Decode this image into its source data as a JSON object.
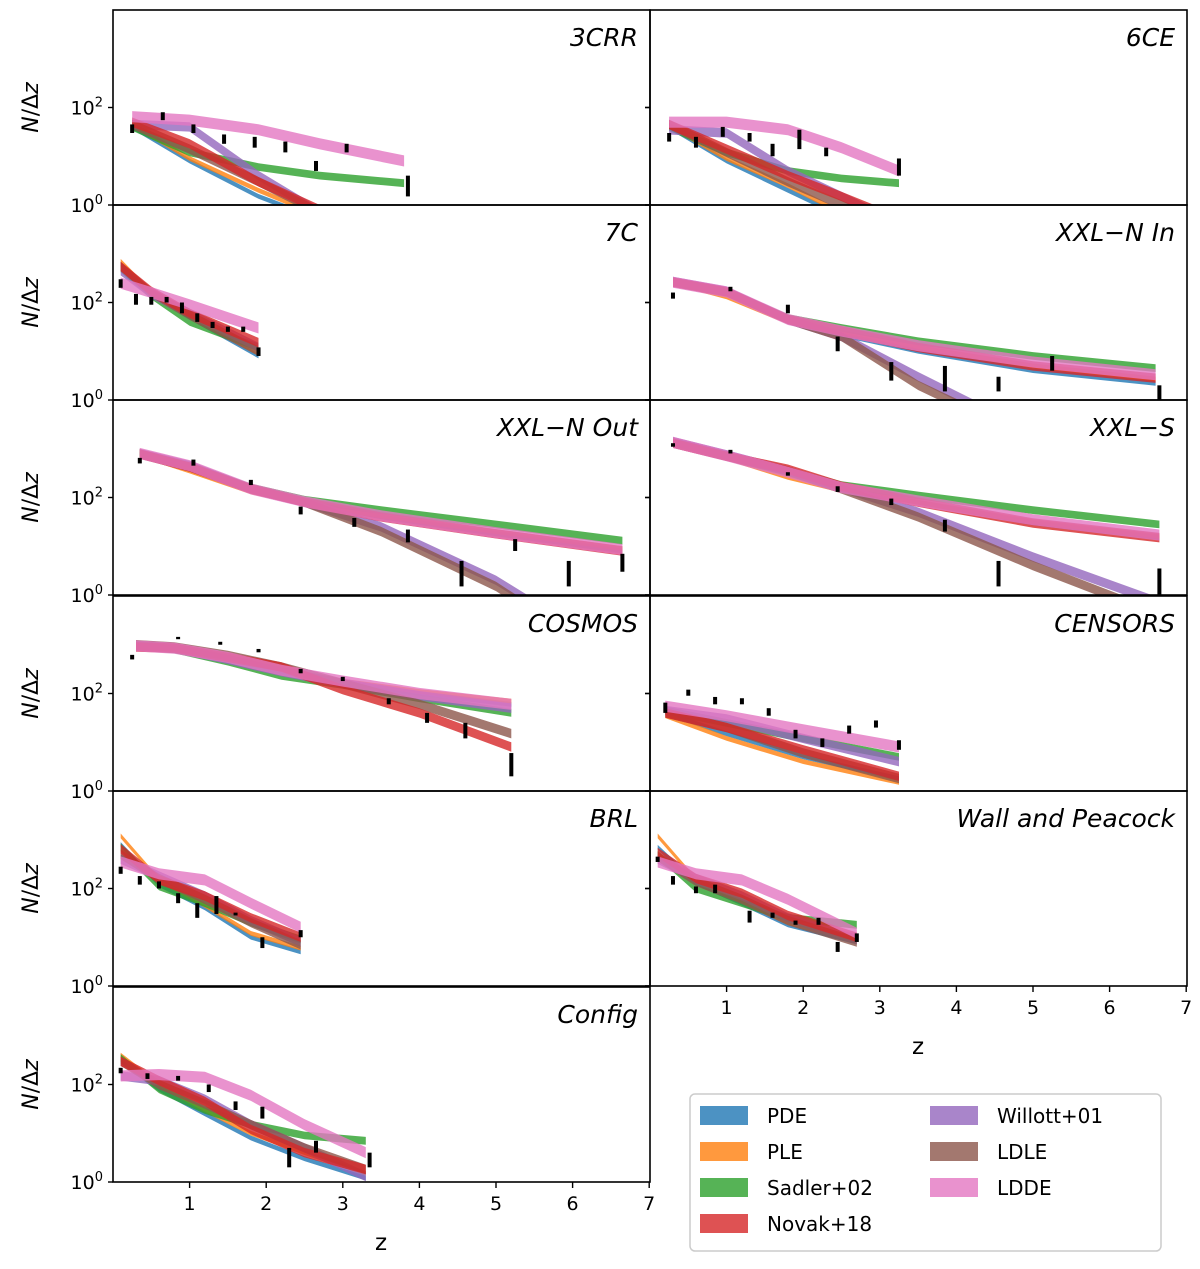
{
  "chart_data": {
    "type": "area",
    "ylabel": "N/Δz",
    "xlabel": "z",
    "yscale": "log",
    "ylim": [
      1,
      10000
    ],
    "xlim": [
      0,
      7
    ],
    "ytick_labels": [
      "10^0",
      "10^2"
    ],
    "xticks": [
      1,
      2,
      3,
      4,
      5,
      6,
      7
    ],
    "legend_location": "lower-right",
    "series": [
      {
        "name": "PDE",
        "color": "#1f77b4"
      },
      {
        "name": "PLE",
        "color": "#ff7f0e"
      },
      {
        "name": "Sadler+02",
        "color": "#2ca02c"
      },
      {
        "name": "Novak+18",
        "color": "#d62728"
      },
      {
        "name": "Willott+01",
        "color": "#9467bd"
      },
      {
        "name": "LDLE",
        "color": "#8c564b"
      },
      {
        "name": "LDDE",
        "color": "#e377c2"
      }
    ],
    "panels": [
      {
        "title": "3CRR",
        "z": [
          0.25,
          1.0,
          1.9,
          2.7,
          3.8
        ],
        "bands": {
          "PDE": [
            40,
            8,
            1.5,
            0.5,
            0.1
          ],
          "PLE": [
            45,
            9,
            2,
            0.6,
            0.12
          ],
          "Sadler+02": [
            40,
            12,
            6,
            4,
            2.8
          ],
          "Novak+18": [
            50,
            18,
            3,
            0.8,
            0.15
          ],
          "Willott+01": [
            45,
            40,
            4,
            0.7,
            0.1
          ],
          "LDLE": [
            45,
            14,
            3,
            0.7,
            0.1
          ],
          "LDDE": [
            65,
            55,
            35,
            18,
            8
          ]
        },
        "data_z": [
          0.25,
          0.65,
          1.05,
          1.45,
          1.85,
          2.25,
          2.65,
          3.05,
          3.85
        ],
        "data_lo": [
          30,
          55,
          30,
          18,
          15,
          12,
          5,
          12,
          1.5
        ],
        "data_hi": [
          45,
          80,
          45,
          28,
          25,
          20,
          8,
          18,
          4
        ]
      },
      {
        "title": "6CE",
        "z": [
          0.25,
          1.0,
          1.8,
          2.5,
          3.25
        ],
        "bands": {
          "PDE": [
            40,
            8,
            2,
            0.6,
            0.2
          ],
          "PLE": [
            42,
            9,
            2.5,
            0.7,
            0.2
          ],
          "Sadler+02": [
            40,
            12,
            5,
            3.5,
            2.8
          ],
          "Novak+18": [
            45,
            14,
            4,
            1.5,
            0.5
          ],
          "Willott+01": [
            35,
            30,
            5,
            1.5,
            0.4
          ],
          "LDLE": [
            45,
            12,
            3,
            1,
            0.3
          ],
          "LDDE": [
            50,
            50,
            35,
            15,
            5
          ]
        },
        "data_z": [
          0.25,
          0.6,
          0.95,
          1.3,
          1.6,
          1.95,
          2.3,
          3.25
        ],
        "data_lo": [
          20,
          15,
          25,
          20,
          10,
          14,
          10,
          4
        ],
        "data_hi": [
          30,
          25,
          40,
          30,
          18,
          35,
          15,
          9
        ]
      },
      {
        "title": "7C",
        "z": [
          0.1,
          0.5,
          1.0,
          1.9
        ],
        "bands": {
          "PDE": [
            600,
            150,
            50,
            8
          ],
          "PLE": [
            700,
            160,
            55,
            9
          ],
          "Sadler+02": [
            500,
            140,
            40,
            12
          ],
          "Novak+18": [
            550,
            170,
            60,
            15
          ],
          "Willott+01": [
            450,
            150,
            60,
            12
          ],
          "LDLE": [
            550,
            160,
            55,
            10
          ],
          "LDDE": [
            250,
            160,
            90,
            30
          ]
        },
        "data_z": [
          0.1,
          0.3,
          0.5,
          0.7,
          0.9,
          1.1,
          1.3,
          1.5,
          1.7,
          1.9
        ],
        "data_lo": [
          200,
          90,
          90,
          100,
          60,
          40,
          30,
          25,
          25,
          8
        ],
        "data_hi": [
          300,
          150,
          130,
          130,
          100,
          60,
          40,
          32,
          32,
          12
        ]
      },
      {
        "title": "XXL−N In",
        "z": [
          0.3,
          1.0,
          1.8,
          2.5,
          3.5,
          5.0,
          6.6
        ],
        "bands": {
          "PDE": [
            260,
            160,
            40,
            22,
            10,
            4,
            2.2
          ],
          "PLE": [
            260,
            130,
            40,
            25,
            12,
            5,
            2.7
          ],
          "Sadler+02": [
            270,
            170,
            48,
            30,
            16,
            8,
            4.5
          ],
          "Novak+18": [
            260,
            165,
            45,
            26,
            12,
            5,
            2.8
          ],
          "Willott+01": [
            270,
            170,
            45,
            20,
            3,
            0.2,
            0.02
          ],
          "LDLE": [
            260,
            165,
            45,
            20,
            2,
            0.15,
            0.01
          ],
          "LDDE": [
            260,
            165,
            45,
            26,
            13,
            6,
            3.3
          ]
        },
        "data_z": [
          0.3,
          1.05,
          1.8,
          2.45,
          3.15,
          3.85,
          4.55,
          5.25,
          6.65
        ],
        "data_lo": [
          120,
          170,
          60,
          10,
          2.5,
          1.5,
          1.5,
          4,
          0.7
        ],
        "data_hi": [
          160,
          210,
          90,
          20,
          6,
          5,
          3,
          8,
          2
        ]
      },
      {
        "title": "XXL−N Out",
        "z": [
          0.35,
          1.0,
          1.8,
          2.5,
          3.5,
          5.0,
          6.65
        ],
        "bands": {
          "PDE": [
            750,
            400,
            150,
            80,
            40,
            18,
            8
          ],
          "PLE": [
            750,
            350,
            130,
            75,
            42,
            20,
            9
          ],
          "Sadler+02": [
            800,
            450,
            160,
            90,
            55,
            28,
            13
          ],
          "Novak+18": [
            780,
            420,
            150,
            80,
            40,
            18,
            8
          ],
          "Willott+01": [
            800,
            450,
            150,
            80,
            25,
            2,
            0.05
          ],
          "LDLE": [
            780,
            420,
            150,
            80,
            20,
            1.5,
            0.03
          ],
          "LDDE": [
            800,
            450,
            150,
            82,
            42,
            19,
            8.5
          ]
        },
        "data_z": [
          0.35,
          1.05,
          1.8,
          2.45,
          3.15,
          3.85,
          4.55,
          5.25,
          5.95,
          6.65
        ],
        "data_lo": [
          500,
          450,
          180,
          45,
          25,
          12,
          1.5,
          8,
          1.5,
          3
        ],
        "data_hi": [
          650,
          600,
          230,
          65,
          38,
          22,
          5,
          14,
          5,
          7
        ]
      },
      {
        "title": "XXL−S",
        "z": [
          0.3,
          1.0,
          1.8,
          2.5,
          3.5,
          5.0,
          6.65
        ],
        "bands": {
          "PDE": [
            1300,
            700,
            300,
            150,
            80,
            30,
            15
          ],
          "PLE": [
            1300,
            650,
            260,
            140,
            80,
            32,
            16
          ],
          "Sadler+02": [
            1400,
            750,
            350,
            180,
            110,
            55,
            28
          ],
          "Novak+18": [
            1300,
            700,
            380,
            170,
            80,
            30,
            15
          ],
          "Willott+01": [
            1400,
            750,
            350,
            160,
            50,
            6,
            0.7
          ],
          "LDLE": [
            1300,
            700,
            350,
            150,
            40,
            4,
            0.4
          ],
          "LDDE": [
            1350,
            720,
            330,
            160,
            85,
            35,
            17
          ]
        },
        "data_z": [
          0.3,
          1.05,
          1.8,
          2.45,
          3.15,
          3.85,
          4.55,
          6.65
        ],
        "data_lo": [
          1100,
          800,
          280,
          130,
          70,
          20,
          1.5,
          0.5
        ],
        "data_hi": [
          1300,
          950,
          330,
          170,
          95,
          35,
          5,
          3.5
        ]
      },
      {
        "title": "COSMOS",
        "z": [
          0.3,
          0.8,
          1.5,
          2.2,
          3.0,
          4.0,
          5.2
        ],
        "bands": {
          "PDE": [
            1000,
            850,
            500,
            280,
            170,
            100,
            60
          ],
          "PLE": [
            1000,
            850,
            550,
            300,
            180,
            110,
            70
          ],
          "Sadler+02": [
            900,
            800,
            450,
            230,
            150,
            80,
            40
          ],
          "Novak+18": [
            900,
            850,
            550,
            350,
            120,
            40,
            8
          ],
          "Willott+01": [
            950,
            850,
            500,
            280,
            160,
            90,
            50
          ],
          "LDLE": [
            1000,
            900,
            600,
            350,
            160,
            60,
            15
          ],
          "LDDE": [
            950,
            850,
            550,
            300,
            180,
            100,
            60
          ]
        },
        "data_z": [
          0.25,
          0.85,
          1.4,
          1.9,
          2.45,
          3.0,
          3.6,
          4.1,
          4.6,
          5.2
        ],
        "data_lo": [
          500,
          1300,
          1000,
          700,
          260,
          180,
          60,
          25,
          12,
          2
        ],
        "data_hi": [
          620,
          1450,
          1150,
          820,
          320,
          220,
          80,
          40,
          25,
          6
        ]
      },
      {
        "title": "CENSORS",
        "z": [
          0.2,
          1.0,
          2.0,
          3.25
        ],
        "bands": {
          "PDE": [
            40,
            15,
            5,
            1.8
          ],
          "PLE": [
            35,
            12,
            4,
            1.5
          ],
          "Sadler+02": [
            45,
            25,
            12,
            5
          ],
          "Novak+18": [
            40,
            20,
            7,
            2
          ],
          "Willott+01": [
            45,
            30,
            12,
            4
          ],
          "LDLE": [
            40,
            20,
            6,
            1.8
          ],
          "LDDE": [
            55,
            35,
            18,
            8
          ]
        },
        "data_z": [
          0.2,
          0.5,
          0.85,
          1.2,
          1.55,
          1.9,
          2.25,
          2.6,
          2.95,
          3.25
        ],
        "data_lo": [
          40,
          90,
          60,
          60,
          35,
          12,
          8,
          15,
          20,
          7
        ],
        "data_hi": [
          65,
          120,
          85,
          80,
          50,
          18,
          12,
          22,
          28,
          11
        ]
      },
      {
        "title": "BRL",
        "z": [
          0.1,
          0.6,
          1.2,
          1.8,
          2.45
        ],
        "bands": {
          "PDE": [
            800,
            120,
            40,
            10,
            5
          ],
          "PLE": [
            1200,
            150,
            45,
            12,
            6
          ],
          "Sadler+02": [
            700,
            110,
            50,
            20,
            9
          ],
          "Novak+18": [
            650,
            150,
            70,
            25,
            10
          ],
          "Willott+01": [
            400,
            180,
            70,
            22,
            8
          ],
          "LDLE": [
            500,
            160,
            60,
            20,
            7
          ],
          "LDDE": [
            350,
            200,
            150,
            50,
            16
          ]
        },
        "data_z": [
          0.1,
          0.35,
          0.6,
          0.85,
          1.1,
          1.35,
          1.6,
          1.95,
          2.45
        ],
        "data_lo": [
          200,
          120,
          100,
          50,
          25,
          30,
          28,
          6,
          10
        ],
        "data_hi": [
          280,
          180,
          140,
          80,
          50,
          70,
          32,
          10,
          14
        ]
      },
      {
        "title": "Wall and Peacock",
        "z": [
          0.1,
          0.6,
          1.2,
          1.8,
          2.7
        ],
        "bands": {
          "PDE": [
            700,
            130,
            50,
            18,
            8
          ],
          "PLE": [
            1200,
            150,
            55,
            20,
            9
          ],
          "Sadler+02": [
            500,
            100,
            50,
            25,
            18
          ],
          "Novak+18": [
            550,
            160,
            80,
            28,
            10
          ],
          "Willott+01": [
            400,
            160,
            70,
            25,
            9
          ],
          "LDLE": [
            450,
            140,
            60,
            22,
            8
          ],
          "LDDE": [
            350,
            200,
            150,
            60,
            12
          ]
        },
        "data_z": [
          0.1,
          0.3,
          0.6,
          0.85,
          1.3,
          1.6,
          1.9,
          2.2,
          2.45,
          2.7
        ],
        "data_lo": [
          350,
          120,
          80,
          80,
          20,
          25,
          18,
          18,
          5,
          8
        ],
        "data_hi": [
          450,
          180,
          110,
          120,
          35,
          32,
          22,
          25,
          8,
          12
        ]
      },
      {
        "title": "Config",
        "z": [
          0.1,
          0.6,
          1.2,
          1.8,
          2.5,
          3.3
        ],
        "bands": {
          "PDE": [
            300,
            80,
            25,
            8,
            3,
            1.2
          ],
          "PLE": [
            400,
            100,
            30,
            10,
            4,
            1.5
          ],
          "Sadler+02": [
            350,
            80,
            30,
            15,
            9,
            7
          ],
          "Novak+18": [
            300,
            120,
            45,
            12,
            4,
            1.8
          ],
          "Willott+01": [
            150,
            120,
            50,
            15,
            5,
            1.3
          ],
          "LDLE": [
            300,
            100,
            40,
            15,
            5,
            1.8
          ],
          "LDDE": [
            150,
            160,
            140,
            60,
            15,
            4
          ]
        },
        "data_z": [
          0.1,
          0.45,
          0.85,
          1.25,
          1.6,
          1.95,
          2.3,
          2.65,
          3.35
        ],
        "data_lo": [
          170,
          130,
          120,
          70,
          30,
          20,
          2,
          4,
          2
        ],
        "data_hi": [
          220,
          170,
          150,
          100,
          45,
          35,
          5,
          7,
          4
        ]
      }
    ]
  }
}
